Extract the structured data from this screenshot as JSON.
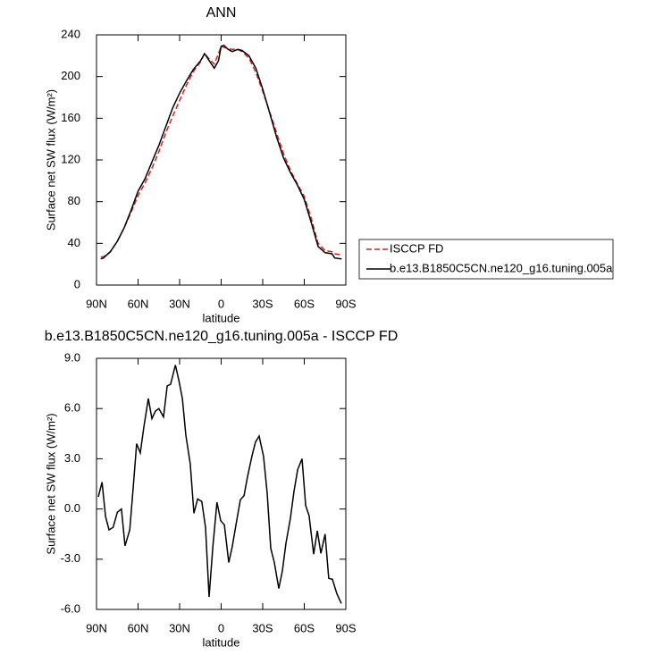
{
  "chart_data": [
    {
      "type": "line",
      "title": "ANN",
      "xlabel": "latitude",
      "ylabel": "Surface net SW flux (W/m²)",
      "x": [
        87,
        85,
        80,
        75,
        70,
        65,
        60,
        55,
        50,
        45,
        40,
        35,
        30,
        25,
        20,
        15,
        12,
        8,
        5,
        2,
        0,
        -2,
        -5,
        -8,
        -12,
        -15,
        -20,
        -25,
        -30,
        -35,
        -40,
        -45,
        -50,
        -55,
        -60,
        -65,
        -70,
        -75,
        -80,
        -82,
        -87
      ],
      "series": [
        {
          "name": "ISCCP FD",
          "color": "#e31a1c",
          "line_style": "dashed",
          "values": [
            27,
            27,
            32,
            42,
            55,
            70,
            86,
            98,
            112,
            128,
            146,
            162,
            177,
            192,
            205,
            214,
            222,
            216,
            212,
            222,
            229,
            228,
            227,
            226,
            226,
            224,
            218,
            204,
            186,
            166,
            146,
            126,
            110,
            97,
            85,
            64,
            40,
            33,
            32,
            30,
            29
          ]
        },
        {
          "name": "b.e13.B1850C5CN.ne120_g16.tuning.005a",
          "color": "#000000",
          "line_style": "solid",
          "values": [
            25,
            26,
            32,
            42,
            55,
            72,
            90,
            102,
            118,
            134,
            152,
            170,
            184,
            196,
            207,
            215,
            222,
            214,
            208,
            215,
            229,
            230,
            226,
            224,
            226,
            225,
            220,
            208,
            188,
            165,
            142,
            122,
            108,
            96,
            82,
            60,
            37,
            31,
            30,
            26,
            25
          ]
        }
      ],
      "xlim": [
        90,
        -90
      ],
      "xticks": [
        {
          "value": 90,
          "label": "90N"
        },
        {
          "value": 60,
          "label": "60N"
        },
        {
          "value": 30,
          "label": "30N"
        },
        0,
        {
          "value": -30,
          "label": "30S"
        },
        {
          "value": -60,
          "label": "60S"
        },
        {
          "value": -90,
          "label": "90S"
        }
      ],
      "ylim": [
        0,
        240
      ],
      "yticks": [
        0,
        40,
        80,
        120,
        160,
        200,
        240
      ],
      "legend": "right"
    },
    {
      "type": "line",
      "title": "b.e13.B1850C5CN.ne120_g16.tuning.005a - ISCCP FD",
      "xlabel": "latitude",
      "ylabel": "Surface net SW flux (W/m²)",
      "x": [
        88.7,
        86,
        83.5,
        81,
        78,
        75,
        72,
        69.4,
        66,
        63.5,
        61,
        58.4,
        55.8,
        52.6,
        50,
        47.4,
        45,
        41.6,
        39,
        36.5,
        33,
        30.6,
        28,
        25.5,
        22.3,
        19.7,
        17,
        14,
        11.3,
        8.7,
        6,
        3,
        0.3,
        -2.3,
        -5.5,
        -8,
        -10.6,
        -13.9,
        -16.5,
        -19,
        -22.3,
        -24.8,
        -27.4,
        -30.6,
        -33.2,
        -35.8,
        -38.4,
        -41.6,
        -44.2,
        -46.8,
        -50,
        -52.6,
        -55.2,
        -58.4,
        -61,
        -63.5,
        -66.8,
        -69.4,
        -72,
        -75,
        -77.7,
        -80.3,
        -83.5,
        -86.8
      ],
      "values": [
        0.72,
        1.6,
        -0.45,
        -1.25,
        -1.1,
        -0.2,
        0,
        -2.2,
        -1.25,
        1.3,
        3.9,
        3.35,
        4.9,
        6.6,
        5.4,
        5.85,
        6,
        5.5,
        7.35,
        7.45,
        8.6,
        7.7,
        6.6,
        4.4,
        2.7,
        -0.25,
        0.6,
        0.45,
        -1.1,
        -5.25,
        -2.25,
        0.4,
        -0.7,
        -0.95,
        -3.2,
        -2.25,
        -1,
        0.55,
        0.8,
        1.9,
        3.2,
        4,
        4.35,
        3.15,
        0.95,
        -2.35,
        -3.2,
        -4.75,
        -3.7,
        -2.05,
        -0.55,
        1.05,
        2.35,
        3.0,
        0.2,
        -0.4,
        -2.7,
        -1.3,
        -2.65,
        -1.5,
        -4.15,
        -4.2,
        -5.05,
        -5.65
      ],
      "color": "#000000",
      "xlim": [
        90,
        -90
      ],
      "xticks": [
        {
          "value": 90,
          "label": "90N"
        },
        {
          "value": 60,
          "label": "60N"
        },
        {
          "value": 30,
          "label": "30N"
        },
        0,
        {
          "value": -30,
          "label": "30S"
        },
        {
          "value": -60,
          "label": "60S"
        },
        {
          "value": -90,
          "label": "90S"
        }
      ],
      "ylim": [
        -6,
        9
      ],
      "yticks": [
        {
          "value": -6,
          "label": "-6.0"
        },
        {
          "value": -3,
          "label": "-3.0"
        },
        {
          "value": 0,
          "label": "0.0"
        },
        {
          "value": 3,
          "label": "3.0"
        },
        {
          "value": 6,
          "label": "6.0"
        },
        {
          "value": 9,
          "label": "9.0"
        }
      ]
    }
  ]
}
